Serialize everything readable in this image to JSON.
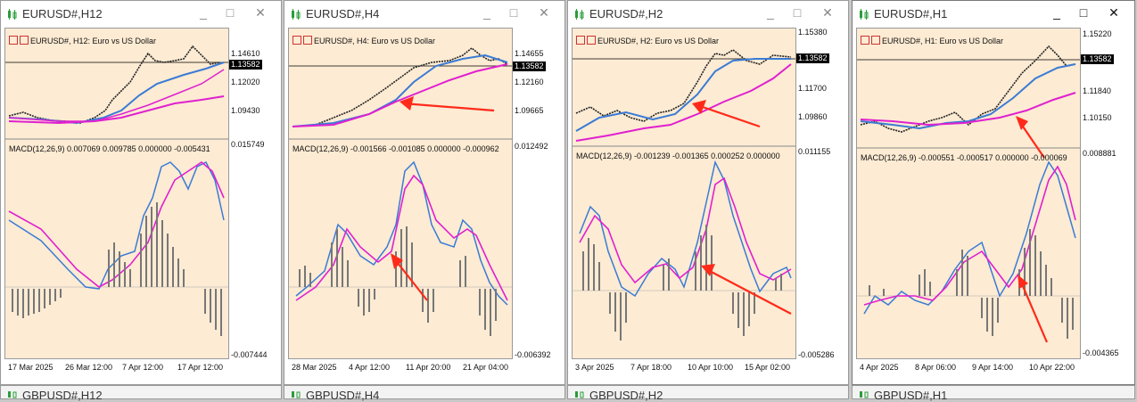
{
  "windows": [
    {
      "title": "EURUSD#,H12",
      "header": "EURUSD#, H12:  Euro vs US Dollar",
      "price_ticks": [
        "1.14610",
        "1.12020",
        "1.09430"
      ],
      "current_price": "1.13582",
      "macd_label": "MACD(12,26,9) 0.007069 0.009785 0.000000 -0.005431",
      "macd_ticks": [
        "0.015749",
        "-0.007444"
      ],
      "date_labels": [
        "17 Mar 2025",
        "26 Mar 12:00",
        "7 Apr 12:00",
        "17 Apr 12:00"
      ]
    },
    {
      "title": "EURUSD#,H4",
      "header": "EURUSD#, H4:  Euro vs US Dollar",
      "price_ticks": [
        "1.14655",
        "1.12160",
        "1.09665"
      ],
      "current_price": "1.13582",
      "macd_label": "MACD(12,26,9) -0.001566 -0.001085 0.000000 -0.000962",
      "macd_ticks": [
        "0.012492",
        "-0.006392"
      ],
      "date_labels": [
        "28 Mar 2025",
        "4 Apr 12:00",
        "11 Apr 20:00",
        "21 Apr 04:00"
      ]
    },
    {
      "title": "EURUSD#,H2",
      "header": "EURUSD#, H2:  Euro vs US Dollar",
      "price_ticks": [
        "1.15380",
        "1.11700",
        "1.09860"
      ],
      "current_price": "1.13582",
      "macd_label": "MACD(12,26,9) -0.001239 -0.001365 0.000252 0.000000",
      "macd_ticks": [
        "0.011155",
        "-0.005286"
      ],
      "date_labels": [
        "3 Apr 2025",
        "7 Apr 18:00",
        "10 Apr 10:00",
        "15 Apr 02:00"
      ]
    },
    {
      "title": "EURUSD#,H1",
      "header": "EURUSD#, H1:  Euro vs US Dollar",
      "price_ticks": [
        "1.15220",
        "1.11840",
        "1.10150"
      ],
      "current_price": "1.13582",
      "macd_label": "MACD(12,26,9) -0.000551 -0.000517 0.000000 -0.000069",
      "macd_ticks": [
        "0.008881",
        "-0.004365"
      ],
      "date_labels": [
        "4 Apr 2025",
        "8 Apr 06:00",
        "9 Apr 14:00",
        "10 Apr 22:00"
      ]
    }
  ],
  "bottom_windows": [
    "GBPUSD#,H12",
    "GBPUSD#,H4",
    "GBPUSD#,H2",
    "GBPUSD#,H1"
  ],
  "controls": {
    "minimize": "_",
    "maximize": "□",
    "close": "✕"
  },
  "colors": {
    "chart_bg": "#fdebd3",
    "ma_blue": "#3a7bd5",
    "ma_magenta": "#e020d0",
    "arrow": "#ff2a1a"
  }
}
